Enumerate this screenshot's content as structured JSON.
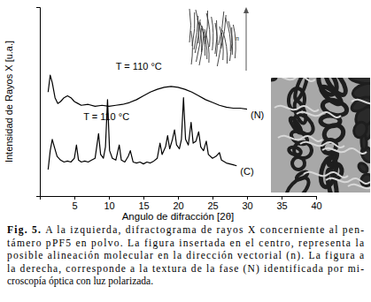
{
  "chart_data": {
    "type": "line",
    "x_label": "Angulo de difracción [2θ]",
    "y_label": "Intensidad de Rayos X [u.a.]",
    "xlim": [
      0,
      40
    ],
    "xticks": [
      5,
      10,
      15,
      20,
      25,
      30,
      35,
      40
    ],
    "ylim": [
      0,
      100
    ],
    "tick_labels": "x",
    "grid": false,
    "annotations": [
      "T = 110 °C",
      "T = 110 °C"
    ],
    "series": [
      {
        "name": "(N)",
        "color": "#000000",
        "x": [
          1.2,
          1.5,
          1.8,
          2.2,
          2.6,
          3.0,
          3.5,
          4.0,
          4.5,
          5.0,
          5.5,
          6,
          7,
          8,
          9,
          10,
          11,
          12,
          13,
          14,
          15,
          16,
          17,
          18,
          19,
          20,
          21,
          22,
          23,
          24,
          25,
          26,
          27,
          28,
          29,
          30
        ],
        "values": [
          55,
          64,
          60,
          52,
          49,
          50,
          52,
          53,
          52,
          50,
          49,
          48,
          48.5,
          47.5,
          48,
          47.5,
          48,
          48.5,
          49.5,
          51,
          53,
          55,
          56.5,
          57.5,
          58,
          57.5,
          56.5,
          55,
          53,
          51,
          49.5,
          48,
          47,
          46.5,
          46.5,
          46
        ]
      },
      {
        "name": "(C)",
        "color": "#000000",
        "x": [
          1.2,
          1.5,
          1.8,
          2.1,
          2.5,
          3,
          3.5,
          4,
          4.5,
          5,
          5.3,
          5.6,
          6,
          6.5,
          7,
          7.5,
          8,
          8.5,
          8.8,
          9.2,
          9.5,
          9.8,
          10.1,
          10.5,
          11,
          11.5,
          11.8,
          12.3,
          12.8,
          13.1,
          13.5,
          14,
          14.5,
          15,
          15.5,
          16,
          16.5,
          17,
          17.4,
          17.7,
          18.2,
          18.5,
          18.8,
          19.2,
          19.5,
          19.8,
          20.2,
          20.5,
          20.8,
          21.1,
          21.5,
          21.9,
          22.2,
          22.6,
          23,
          23.3,
          23.7,
          24.1,
          24.4,
          25,
          25.5,
          26,
          26.3,
          27,
          27.5,
          28,
          28.5
        ],
        "values": [
          14,
          24,
          30,
          26,
          21,
          19,
          18,
          18.5,
          18,
          20,
          27,
          19,
          18,
          18.5,
          18,
          19,
          20,
          33,
          22,
          20,
          26,
          51,
          24,
          20,
          19,
          27,
          19,
          18,
          21,
          24,
          18,
          17.5,
          18,
          17,
          18,
          17.5,
          18.5,
          20,
          28,
          22,
          26,
          32,
          25,
          30,
          35,
          27,
          25,
          30,
          52,
          30,
          27,
          39,
          28,
          29,
          34,
          26,
          24,
          29,
          22,
          20,
          21,
          23,
          19,
          17.5,
          17,
          16.5,
          16
        ]
      }
    ]
  },
  "inset_vector_label": "n",
  "caption": {
    "label": "Fig. 5.",
    "lines": [
      "A la izquierda, difractograma de rayos X concerniente al pen-",
      "támero pPF5 en polvo. La figura insertada en el centro, representa la",
      "posible alineación molecular en la dirección vectorial (n). La figura a",
      "la derecha, corresponde a la textura de la fase (N) identificada por mi-",
      "croscopía óptica con luz polarizada."
    ]
  }
}
